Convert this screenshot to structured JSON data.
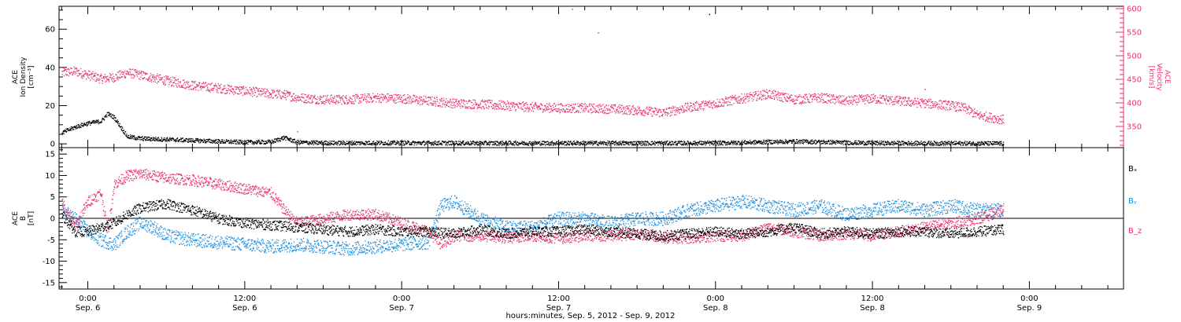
{
  "chart_data": [
    {
      "type": "scatter",
      "title": "",
      "xlabel": "hours:minutes, Sep. 5, 2012 - Sep. 9, 2012",
      "x_unit": "hours from 0:00 Sep. 6, 2012",
      "xlim": [
        -2.2,
        79.2
      ],
      "x_ticks": [
        {
          "time": "0:00",
          "day": "Sep. 6"
        },
        {
          "time": "12:00",
          "day": "Sep. 6"
        },
        {
          "time": "0:00",
          "day": "Sep. 7"
        },
        {
          "time": "12:00",
          "day": "Sep. 7"
        },
        {
          "time": "0:00",
          "day": "Sep. 8"
        },
        {
          "time": "12:00",
          "day": "Sep. 8"
        },
        {
          "time": "0:00",
          "day": "Sep. 9"
        }
      ],
      "ylabel_left": [
        "ACE",
        "Ion Density",
        "[cm⁻³]"
      ],
      "ylim_left": [
        -2,
        72
      ],
      "yticks_left": [
        0,
        20,
        40,
        60
      ],
      "ylabel_right": [
        "ACE",
        "Velocity",
        "[km/s]"
      ],
      "ylim_right": [
        305,
        605
      ],
      "yticks_right": [
        350,
        400,
        450,
        500,
        550,
        600
      ],
      "series": [
        {
          "axis": "left",
          "color": "#000000",
          "x": [
            -2,
            -1,
            0,
            1,
            1.5,
            2,
            3,
            4,
            6,
            8,
            10,
            12,
            14,
            15,
            16,
            18,
            24,
            30,
            36,
            42,
            48,
            54,
            60,
            66,
            70
          ],
          "y": [
            6,
            9,
            11,
            12,
            16,
            14,
            4,
            3,
            2.5,
            2,
            1.5,
            1,
            1.2,
            3.5,
            1,
            0.7,
            0.7,
            0.6,
            0.6,
            0.6,
            0.6,
            1.5,
            0.6,
            0.5,
            0.4
          ]
        },
        {
          "axis": "right",
          "color": "#e8336b",
          "x": [
            -2,
            -1,
            0,
            1,
            2,
            3,
            4,
            6,
            8,
            10,
            12,
            14,
            15,
            16,
            18,
            20,
            22,
            24,
            26,
            28,
            30,
            32,
            34,
            36,
            38,
            40,
            42,
            44,
            46,
            48,
            50,
            52,
            54,
            56,
            58,
            60,
            62,
            64,
            66,
            67,
            68,
            70
          ],
          "y": [
            465,
            468,
            460,
            452,
            455,
            465,
            460,
            448,
            438,
            432,
            426,
            420,
            418,
            412,
            408,
            408,
            412,
            410,
            405,
            400,
            398,
            395,
            392,
            390,
            390,
            388,
            385,
            380,
            392,
            400,
            410,
            420,
            408,
            412,
            405,
            410,
            405,
            400,
            395,
            390,
            375,
            365
          ]
        }
      ]
    },
    {
      "type": "scatter",
      "title": "",
      "xlabel": "hours:minutes, Sep. 5, 2012 - Sep. 9, 2012",
      "x_unit": "hours from 0:00 Sep. 6, 2012",
      "xlim": [
        -2.2,
        79.2
      ],
      "ylabel": [
        "ACE",
        "B",
        "[nT]"
      ],
      "ylim": [
        -16.5,
        16.5
      ],
      "yticks": [
        -15,
        -10,
        -5,
        0,
        5,
        10,
        15
      ],
      "zero_line": true,
      "legend_position": "right",
      "series": [
        {
          "name": "Bₓ",
          "color": "#000000",
          "x": [
            -2,
            -1,
            0,
            1,
            2,
            3,
            4,
            5,
            6,
            8,
            10,
            12,
            14,
            16,
            18,
            20,
            22,
            24,
            26,
            28,
            30,
            32,
            34,
            36,
            38,
            40,
            42,
            44,
            46,
            48,
            50,
            52,
            54,
            56,
            58,
            60,
            62,
            64,
            66,
            68,
            70
          ],
          "y": [
            1,
            -3,
            -3,
            -2,
            -1,
            1,
            2.5,
            3,
            3.5,
            2,
            0,
            -1,
            -1.5,
            -2,
            -2.5,
            -3,
            -2.5,
            -3,
            -3,
            -3.5,
            -2.5,
            -3.5,
            -3,
            -3,
            -2.5,
            -3,
            -3.5,
            -4,
            -3.5,
            -3,
            -3.5,
            -3,
            -2,
            -3.5,
            -3,
            -3.5,
            -3,
            -3,
            -3.5,
            -3,
            -2.5
          ]
        },
        {
          "name": "Bᵧ",
          "color": "#1a8ee0",
          "x": [
            -2,
            -1,
            0,
            1,
            2,
            3,
            4,
            5,
            6,
            8,
            10,
            12,
            14,
            16,
            18,
            20,
            22,
            24,
            26,
            27,
            28,
            30,
            32,
            34,
            36,
            38,
            40,
            42,
            44,
            46,
            48,
            50,
            52,
            54,
            56,
            58,
            60,
            62,
            64,
            66,
            68,
            70
          ],
          "y": [
            2,
            0,
            -3,
            -5,
            -6,
            -3,
            -1,
            -2,
            -4,
            -5,
            -5.5,
            -6,
            -6.5,
            -6,
            -6.5,
            -7,
            -6.5,
            -6,
            -5.5,
            3,
            4,
            0,
            -2,
            -2,
            0,
            0,
            -1,
            0,
            0,
            2,
            3,
            4,
            3,
            2,
            3,
            1,
            2,
            3,
            2,
            3,
            2,
            2
          ]
        },
        {
          "name": "B_z",
          "color": "#e8336b",
          "x": [
            -2,
            -1,
            0,
            1,
            1.5,
            2,
            3,
            4,
            5,
            6,
            8,
            10,
            12,
            14,
            15,
            16,
            18,
            20,
            22,
            24,
            26,
            27,
            28,
            30,
            32,
            34,
            36,
            38,
            40,
            42,
            44,
            46,
            48,
            50,
            52,
            54,
            56,
            58,
            60,
            62,
            64,
            66,
            68,
            70
          ],
          "y": [
            4,
            -2,
            4,
            6,
            -3,
            8,
            10,
            10.5,
            10,
            9.5,
            9,
            8,
            7,
            6,
            2,
            -1,
            0,
            1,
            1,
            -1,
            -3,
            -6,
            -4,
            -4,
            -4.5,
            -4,
            -4.5,
            -4,
            -4,
            -3.5,
            -4.5,
            -4.5,
            -4,
            -4,
            -2,
            -3,
            -4,
            -3.5,
            -4,
            -3,
            -2,
            -1,
            0,
            2
          ]
        }
      ]
    }
  ]
}
